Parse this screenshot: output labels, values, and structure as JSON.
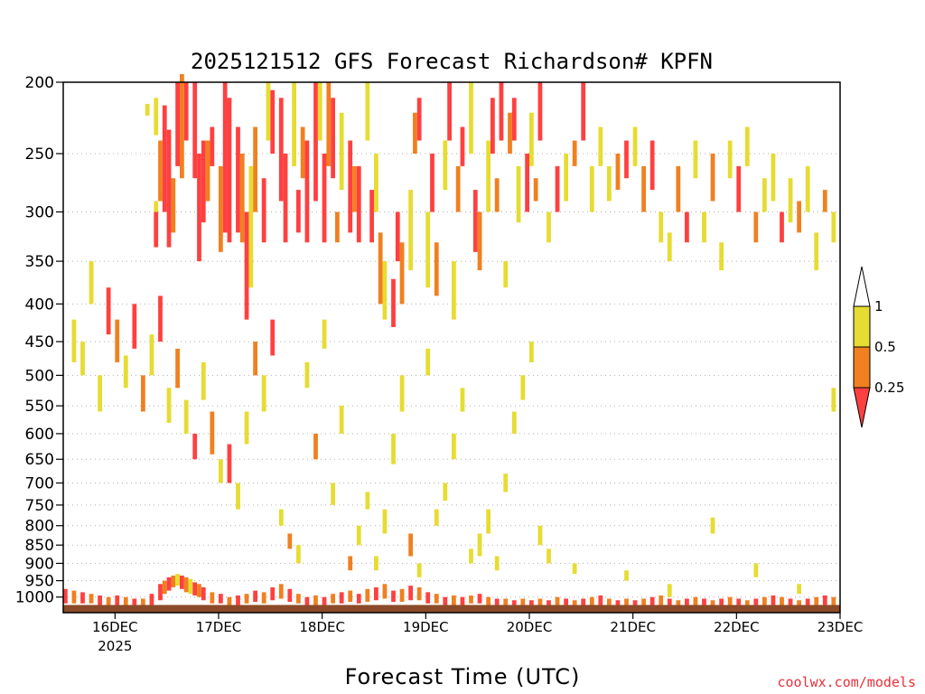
{
  "chart_data": {
    "type": "heatmap",
    "title": "2025121512 GFS Forecast Richardson# KPFN",
    "xlabel": "Forecast Time (UTC)",
    "credit": "coolwx.com/models",
    "y_axis": {
      "label": "",
      "scale": "log-pressure",
      "range": [
        1050,
        200
      ],
      "ticks": [
        200,
        250,
        300,
        350,
        400,
        450,
        500,
        550,
        600,
        650,
        700,
        750,
        800,
        850,
        900,
        950,
        1000
      ],
      "grid": true
    },
    "x_axis": {
      "range_hours": [
        0,
        180
      ],
      "ticks": [
        {
          "label": "16DEC",
          "sub": "2025",
          "h": 12
        },
        {
          "label": "17DEC",
          "h": 36
        },
        {
          "label": "18DEC",
          "h": 60
        },
        {
          "label": "19DEC",
          "h": 84
        },
        {
          "label": "20DEC",
          "h": 108
        },
        {
          "label": "21DEC",
          "h": 132
        },
        {
          "label": "22DEC",
          "h": 156
        },
        {
          "label": "23DEC",
          "h": 180
        }
      ]
    },
    "legend": {
      "placement": "right",
      "levels": [
        {
          "label": "1",
          "value": 1
        },
        {
          "label": "0.5",
          "value": 0.5
        },
        {
          "label": "0.25",
          "value": 0.25
        }
      ],
      "colors": [
        "#ff4040",
        "#f08020",
        "#e6dc32"
      ]
    },
    "class_colors": {
      "1": "#e6dc32",
      "2": "#f08020",
      "3": "#ff4040"
    },
    "ground_color": "#8b4a28",
    "cells": [
      [
        19,
        214,
        222,
        1
      ],
      [
        21,
        210,
        236,
        1
      ],
      [
        21,
        290,
        300,
        1
      ],
      [
        22,
        240,
        290,
        2
      ],
      [
        21,
        300,
        335,
        3
      ],
      [
        23,
        215,
        300,
        3
      ],
      [
        24,
        232,
        335,
        3
      ],
      [
        25,
        270,
        320,
        2
      ],
      [
        26,
        200,
        260,
        3
      ],
      [
        27,
        195,
        270,
        2
      ],
      [
        28,
        200,
        240,
        3
      ],
      [
        30,
        200,
        270,
        3
      ],
      [
        31,
        250,
        350,
        3
      ],
      [
        32,
        240,
        310,
        3
      ],
      [
        33,
        240,
        290,
        2
      ],
      [
        34,
        230,
        260,
        3
      ],
      [
        36,
        260,
        340,
        2
      ],
      [
        37,
        200,
        320,
        3
      ],
      [
        38,
        210,
        330,
        3
      ],
      [
        40,
        230,
        320,
        3
      ],
      [
        41,
        250,
        330,
        2
      ],
      [
        42,
        300,
        420,
        3
      ],
      [
        43,
        260,
        380,
        1
      ],
      [
        44,
        230,
        300,
        2
      ],
      [
        46,
        270,
        330,
        3
      ],
      [
        47,
        200,
        240,
        1
      ],
      [
        48,
        205,
        250,
        3
      ],
      [
        50,
        210,
        290,
        3
      ],
      [
        51,
        250,
        330,
        3
      ],
      [
        53,
        200,
        260,
        1
      ],
      [
        54,
        280,
        320,
        3
      ],
      [
        55,
        230,
        270,
        2
      ],
      [
        56,
        240,
        330,
        3
      ],
      [
        58,
        200,
        290,
        3
      ],
      [
        59,
        200,
        240,
        1
      ],
      [
        60,
        250,
        330,
        3
      ],
      [
        61,
        200,
        260,
        2
      ],
      [
        62,
        210,
        270,
        3
      ],
      [
        63,
        300,
        330,
        2
      ],
      [
        64,
        220,
        280,
        1
      ],
      [
        66,
        240,
        320,
        3
      ],
      [
        67,
        260,
        300,
        2
      ],
      [
        68,
        260,
        330,
        3
      ],
      [
        70,
        200,
        240,
        1
      ],
      [
        71,
        280,
        330,
        3
      ],
      [
        72,
        250,
        300,
        1
      ],
      [
        73,
        320,
        400,
        2
      ],
      [
        74,
        350,
        420,
        1
      ],
      [
        76,
        370,
        430,
        3
      ],
      [
        77,
        300,
        350,
        3
      ],
      [
        78,
        330,
        400,
        2
      ],
      [
        80,
        280,
        360,
        1
      ],
      [
        81,
        220,
        250,
        2
      ],
      [
        82,
        210,
        240,
        3
      ],
      [
        84,
        300,
        380,
        1
      ],
      [
        85,
        250,
        300,
        3
      ],
      [
        86,
        330,
        390,
        2
      ],
      [
        88,
        240,
        280,
        1
      ],
      [
        89,
        200,
        240,
        3
      ],
      [
        90,
        350,
        420,
        1
      ],
      [
        91,
        260,
        300,
        2
      ],
      [
        92,
        230,
        260,
        3
      ],
      [
        94,
        200,
        250,
        1
      ],
      [
        95,
        280,
        340,
        3
      ],
      [
        96,
        300,
        360,
        2
      ],
      [
        98,
        240,
        300,
        1
      ],
      [
        99,
        210,
        250,
        3
      ],
      [
        100,
        270,
        300,
        2
      ],
      [
        101,
        200,
        240,
        3
      ],
      [
        102,
        350,
        380,
        1
      ],
      [
        103,
        220,
        250,
        2
      ],
      [
        104,
        210,
        240,
        3
      ],
      [
        105,
        260,
        310,
        1
      ],
      [
        107,
        250,
        300,
        3
      ],
      [
        108,
        220,
        260,
        1
      ],
      [
        109,
        270,
        290,
        2
      ],
      [
        110,
        200,
        240,
        3
      ],
      [
        112,
        300,
        330,
        1
      ],
      [
        114,
        260,
        300,
        3
      ],
      [
        116,
        250,
        290,
        1
      ],
      [
        118,
        240,
        260,
        2
      ],
      [
        120,
        200,
        240,
        3
      ],
      [
        122,
        260,
        300,
        1
      ],
      [
        124,
        230,
        260,
        1
      ],
      [
        126,
        260,
        290,
        1
      ],
      [
        128,
        250,
        280,
        2
      ],
      [
        130,
        240,
        270,
        3
      ],
      [
        132,
        230,
        260,
        1
      ],
      [
        134,
        260,
        300,
        2
      ],
      [
        136,
        240,
        280,
        3
      ],
      [
        138,
        300,
        330,
        1
      ],
      [
        140,
        320,
        350,
        1
      ],
      [
        142,
        260,
        300,
        2
      ],
      [
        144,
        300,
        330,
        3
      ],
      [
        146,
        240,
        270,
        1
      ],
      [
        148,
        300,
        330,
        1
      ],
      [
        150,
        250,
        290,
        2
      ],
      [
        152,
        330,
        360,
        1
      ],
      [
        154,
        240,
        270,
        1
      ],
      [
        156,
        260,
        300,
        3
      ],
      [
        158,
        230,
        260,
        1
      ],
      [
        160,
        300,
        330,
        2
      ],
      [
        162,
        270,
        300,
        1
      ],
      [
        164,
        250,
        290,
        1
      ],
      [
        166,
        300,
        330,
        3
      ],
      [
        168,
        270,
        310,
        1
      ],
      [
        170,
        290,
        320,
        2
      ],
      [
        172,
        260,
        300,
        1
      ],
      [
        174,
        320,
        360,
        1
      ],
      [
        176,
        280,
        300,
        2
      ],
      [
        178,
        300,
        330,
        1
      ],
      [
        2,
        420,
        480,
        1
      ],
      [
        4,
        450,
        500,
        1
      ],
      [
        6,
        350,
        400,
        1
      ],
      [
        8,
        500,
        560,
        1
      ],
      [
        10,
        380,
        440,
        3
      ],
      [
        12,
        420,
        480,
        2
      ],
      [
        14,
        470,
        520,
        1
      ],
      [
        16,
        400,
        460,
        3
      ],
      [
        18,
        500,
        560,
        2
      ],
      [
        20,
        440,
        500,
        1
      ],
      [
        22,
        390,
        450,
        3
      ],
      [
        24,
        520,
        580,
        1
      ],
      [
        26,
        460,
        520,
        2
      ],
      [
        28,
        540,
        600,
        1
      ],
      [
        30,
        600,
        650,
        3
      ],
      [
        32,
        480,
        540,
        1
      ],
      [
        34,
        560,
        640,
        2
      ],
      [
        36,
        650,
        700,
        1
      ],
      [
        38,
        620,
        700,
        3
      ],
      [
        40,
        700,
        760,
        1
      ],
      [
        42,
        560,
        620,
        1
      ],
      [
        44,
        450,
        500,
        2
      ],
      [
        46,
        500,
        560,
        1
      ],
      [
        48,
        420,
        470,
        3
      ],
      [
        50,
        760,
        800,
        1
      ],
      [
        52,
        820,
        860,
        2
      ],
      [
        54,
        850,
        900,
        1
      ],
      [
        56,
        480,
        520,
        1
      ],
      [
        58,
        600,
        650,
        2
      ],
      [
        60,
        420,
        460,
        1
      ],
      [
        62,
        700,
        750,
        1
      ],
      [
        64,
        550,
        600,
        1
      ],
      [
        66,
        880,
        920,
        2
      ],
      [
        68,
        800,
        850,
        1
      ],
      [
        70,
        720,
        760,
        1
      ],
      [
        72,
        880,
        920,
        1
      ],
      [
        74,
        760,
        820,
        1
      ],
      [
        76,
        600,
        660,
        1
      ],
      [
        78,
        500,
        560,
        1
      ],
      [
        80,
        820,
        880,
        2
      ],
      [
        82,
        900,
        940,
        1
      ],
      [
        84,
        460,
        500,
        1
      ],
      [
        86,
        760,
        800,
        1
      ],
      [
        88,
        700,
        740,
        1
      ],
      [
        90,
        600,
        650,
        1
      ],
      [
        92,
        520,
        560,
        1
      ],
      [
        94,
        860,
        900,
        1
      ],
      [
        96,
        820,
        880,
        1
      ],
      [
        98,
        760,
        820,
        1
      ],
      [
        100,
        880,
        920,
        1
      ],
      [
        102,
        680,
        720,
        1
      ],
      [
        104,
        560,
        600,
        1
      ],
      [
        106,
        500,
        540,
        1
      ],
      [
        108,
        450,
        480,
        1
      ],
      [
        110,
        800,
        850,
        1
      ],
      [
        112,
        860,
        900,
        1
      ],
      [
        118,
        900,
        930,
        1
      ],
      [
        130,
        920,
        950,
        1
      ],
      [
        140,
        960,
        1000,
        1
      ],
      [
        150,
        780,
        820,
        1
      ],
      [
        160,
        900,
        940,
        1
      ],
      [
        170,
        960,
        990,
        1
      ],
      [
        178,
        520,
        560,
        1
      ],
      [
        0,
        975,
        1020,
        3
      ],
      [
        2,
        980,
        1020,
        2
      ],
      [
        4,
        985,
        1020,
        3
      ],
      [
        6,
        990,
        1020,
        2
      ],
      [
        8,
        995,
        1025,
        3
      ],
      [
        10,
        1000,
        1025,
        2
      ],
      [
        12,
        995,
        1025,
        3
      ],
      [
        14,
        1000,
        1025,
        2
      ],
      [
        16,
        1005,
        1025,
        3
      ],
      [
        18,
        1005,
        1025,
        2
      ],
      [
        20,
        990,
        1025,
        3
      ],
      [
        22,
        960,
        1010,
        3
      ],
      [
        23,
        950,
        990,
        2
      ],
      [
        24,
        940,
        980,
        3
      ],
      [
        25,
        935,
        970,
        2
      ],
      [
        26,
        930,
        965,
        1
      ],
      [
        27,
        935,
        975,
        3
      ],
      [
        28,
        940,
        985,
        2
      ],
      [
        29,
        945,
        990,
        1
      ],
      [
        30,
        955,
        995,
        3
      ],
      [
        31,
        960,
        1000,
        2
      ],
      [
        32,
        970,
        1010,
        3
      ],
      [
        34,
        985,
        1020,
        2
      ],
      [
        36,
        990,
        1020,
        3
      ],
      [
        38,
        1000,
        1025,
        2
      ],
      [
        40,
        995,
        1025,
        3
      ],
      [
        42,
        990,
        1020,
        2
      ],
      [
        44,
        980,
        1015,
        3
      ],
      [
        46,
        985,
        1020,
        2
      ],
      [
        48,
        970,
        1010,
        3
      ],
      [
        50,
        960,
        1005,
        2
      ],
      [
        52,
        975,
        1015,
        3
      ],
      [
        54,
        990,
        1020,
        2
      ],
      [
        56,
        1000,
        1025,
        3
      ],
      [
        58,
        995,
        1025,
        2
      ],
      [
        60,
        1000,
        1025,
        3
      ],
      [
        62,
        990,
        1020,
        2
      ],
      [
        64,
        985,
        1020,
        3
      ],
      [
        66,
        980,
        1015,
        2
      ],
      [
        68,
        990,
        1020,
        3
      ],
      [
        70,
        975,
        1015,
        2
      ],
      [
        72,
        970,
        1010,
        3
      ],
      [
        74,
        960,
        1005,
        2
      ],
      [
        76,
        980,
        1015,
        3
      ],
      [
        78,
        975,
        1015,
        2
      ],
      [
        80,
        965,
        1010,
        3
      ],
      [
        82,
        970,
        1010,
        2
      ],
      [
        84,
        985,
        1020,
        3
      ],
      [
        86,
        990,
        1020,
        2
      ],
      [
        88,
        1000,
        1025,
        3
      ],
      [
        90,
        995,
        1025,
        2
      ],
      [
        92,
        1000,
        1025,
        3
      ],
      [
        94,
        995,
        1020,
        2
      ],
      [
        96,
        990,
        1020,
        3
      ],
      [
        98,
        1000,
        1025,
        2
      ],
      [
        100,
        1005,
        1025,
        3
      ],
      [
        102,
        1005,
        1025,
        2
      ],
      [
        104,
        1010,
        1025,
        3
      ],
      [
        106,
        1005,
        1025,
        2
      ],
      [
        108,
        1010,
        1025,
        3
      ],
      [
        110,
        1005,
        1025,
        2
      ],
      [
        112,
        1010,
        1025,
        3
      ],
      [
        114,
        1000,
        1025,
        2
      ],
      [
        116,
        1005,
        1025,
        3
      ],
      [
        118,
        1010,
        1025,
        2
      ],
      [
        120,
        1005,
        1025,
        3
      ],
      [
        122,
        1000,
        1025,
        2
      ],
      [
        124,
        995,
        1025,
        3
      ],
      [
        126,
        1005,
        1025,
        2
      ],
      [
        128,
        1010,
        1025,
        3
      ],
      [
        130,
        1005,
        1025,
        2
      ],
      [
        132,
        1010,
        1025,
        3
      ],
      [
        134,
        1005,
        1025,
        2
      ],
      [
        136,
        1000,
        1025,
        3
      ],
      [
        138,
        995,
        1025,
        2
      ],
      [
        140,
        1005,
        1025,
        3
      ],
      [
        142,
        1010,
        1025,
        2
      ],
      [
        144,
        1005,
        1025,
        3
      ],
      [
        146,
        1000,
        1025,
        2
      ],
      [
        148,
        1005,
        1025,
        3
      ],
      [
        150,
        1010,
        1025,
        2
      ],
      [
        152,
        1005,
        1025,
        3
      ],
      [
        154,
        1000,
        1025,
        2
      ],
      [
        156,
        1005,
        1025,
        3
      ],
      [
        158,
        1010,
        1025,
        2
      ],
      [
        160,
        1005,
        1025,
        3
      ],
      [
        162,
        1000,
        1025,
        2
      ],
      [
        164,
        995,
        1025,
        3
      ],
      [
        166,
        1000,
        1025,
        2
      ],
      [
        168,
        1005,
        1025,
        3
      ],
      [
        170,
        1010,
        1025,
        2
      ],
      [
        172,
        1005,
        1025,
        3
      ],
      [
        174,
        1000,
        1025,
        2
      ],
      [
        176,
        995,
        1025,
        3
      ],
      [
        178,
        1000,
        1025,
        2
      ]
    ]
  }
}
